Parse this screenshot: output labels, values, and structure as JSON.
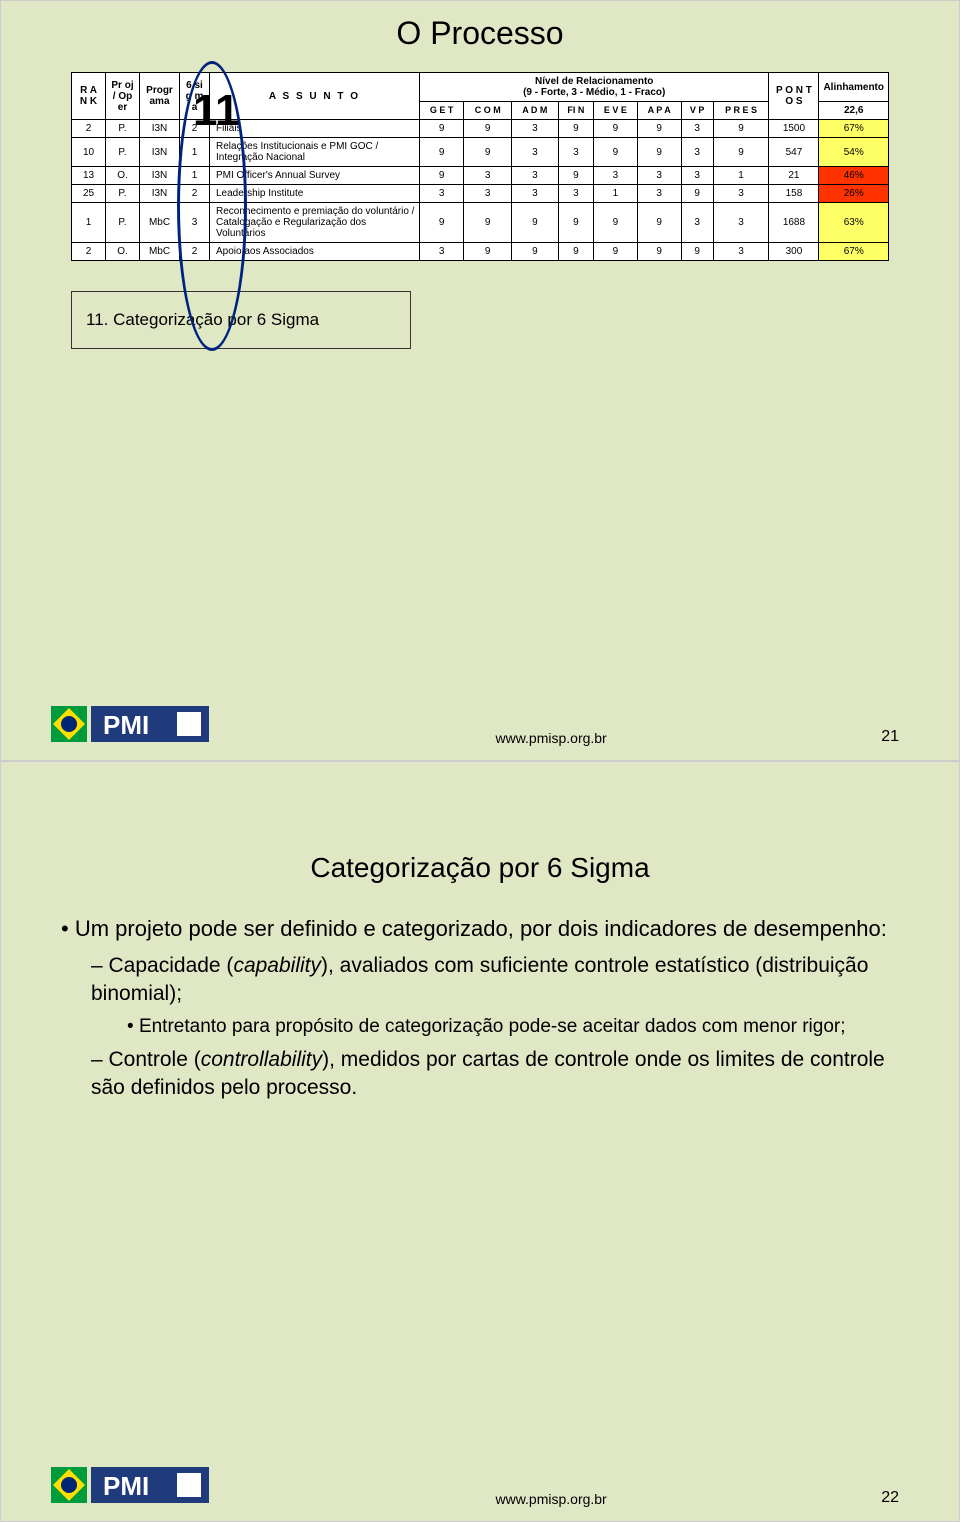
{
  "slide1": {
    "title": "O Processo",
    "big_number": "11",
    "annotation": "11. Categorização por 6 Sigma",
    "table": {
      "top_header_nivel": "Nível de Relacionamento\n(9 - Forte, 3 - Médio, 1 - Fraco)",
      "top_header_alinh": "Alinhamento",
      "cols": {
        "rank": "R A N K",
        "proj": "Pr oj / Op er",
        "prog": "Progr ama",
        "sigma": "6 si g m a",
        "assunto": "A S S U N T O",
        "get": "G E T",
        "com": "C O M",
        "adm": "A D M",
        "fin": "FI N",
        "eve": "E V E",
        "apa": "A P A",
        "vp": "V P",
        "pres": "P R E S",
        "pontos": "P O N T O S",
        "align_val": "22,6"
      },
      "rows": [
        {
          "rank": "2",
          "proj": "P.",
          "prog": "I3N",
          "sigma": "2",
          "assunto": "Filiais",
          "g": "9",
          "c": "9",
          "a": "3",
          "f": "9",
          "e": "9",
          "ap": "9",
          "v": "3",
          "p": "9",
          "pts": "1500",
          "pct": "67%",
          "color": "#ffff66"
        },
        {
          "rank": "10",
          "proj": "P.",
          "prog": "I3N",
          "sigma": "1",
          "assunto": "Relações Institucionais e PMI GOC / Integração Nacional",
          "g": "9",
          "c": "9",
          "a": "3",
          "f": "3",
          "e": "9",
          "ap": "9",
          "v": "3",
          "p": "9",
          "pts": "547",
          "pct": "54%",
          "color": "#ffff66"
        },
        {
          "rank": "13",
          "proj": "O.",
          "prog": "I3N",
          "sigma": "1",
          "assunto": "PMI Officer's Annual Survey",
          "g": "9",
          "c": "3",
          "a": "3",
          "f": "9",
          "e": "3",
          "ap": "3",
          "v": "3",
          "p": "1",
          "pts": "21",
          "pct": "46%",
          "color": "#ff3300"
        },
        {
          "rank": "25",
          "proj": "P.",
          "prog": "I3N",
          "sigma": "2",
          "assunto": "Leadership Institute",
          "g": "3",
          "c": "3",
          "a": "3",
          "f": "3",
          "e": "1",
          "ap": "3",
          "v": "9",
          "p": "3",
          "pts": "158",
          "pct": "26%",
          "color": "#ff3300"
        },
        {
          "rank": "1",
          "proj": "P.",
          "prog": "MbC",
          "sigma": "3",
          "assunto": "Reconhecimento e premiação do voluntário / Catalogação e Regularização dos Voluntários",
          "g": "9",
          "c": "9",
          "a": "9",
          "f": "9",
          "e": "9",
          "ap": "9",
          "v": "3",
          "p": "3",
          "pts": "1688",
          "pct": "63%",
          "color": "#ffff66"
        },
        {
          "rank": "2",
          "proj": "O.",
          "prog": "MbC",
          "sigma": "2",
          "assunto": "Apoio aos Associados",
          "g": "3",
          "c": "9",
          "a": "9",
          "f": "9",
          "e": "9",
          "ap": "9",
          "v": "9",
          "p": "3",
          "pts": "300",
          "pct": "67%",
          "color": "#ffff66"
        }
      ]
    },
    "footer_url": "www.pmisp.org.br",
    "page_num": "21"
  },
  "slide2": {
    "title": "Categorização por 6 Sigma",
    "b1": "Um projeto pode ser definido e categorizado, por dois indicadores de desempenho:",
    "b2a_pre": "Capacidade (",
    "b2a_it": "capability",
    "b2a_post": "), avaliados com suficiente controle estatístico (distribuição binomial);",
    "b3": "Entretanto para propósito de categorização pode-se aceitar dados com menor rigor;",
    "b2b_pre": "Controle (",
    "b2b_it": "controllability",
    "b2b_post": "), medidos por cartas de controle onde os limites de controle são definidos pelo processo.",
    "footer_url": "www.pmisp.org.br",
    "page_num": "22"
  },
  "logo_colors": {
    "flag_green": "#009b3a",
    "flag_yellow": "#fedf00",
    "flag_blue": "#002776",
    "pmi_blue": "#1f3b7b"
  }
}
